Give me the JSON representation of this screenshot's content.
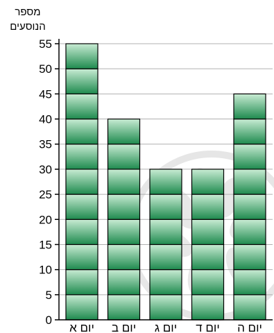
{
  "chart_data": {
    "type": "bar",
    "ylabel_lines": [
      "מספר",
      "הנוסעים"
    ],
    "categories": [
      "יום א",
      "יום ב",
      "יום ג",
      "יום ד",
      "יום ה"
    ],
    "values": [
      55,
      40,
      30,
      30,
      45
    ],
    "ylim": [
      0,
      55
    ],
    "yticks": [
      0,
      5,
      10,
      15,
      20,
      25,
      30,
      35,
      40,
      45,
      50,
      55
    ],
    "segment_size": 5,
    "grid": true,
    "colors": {
      "bar_top": "#c9ecd4",
      "bar_bottom": "#1e8a4e",
      "bar_edge": "#000000",
      "grid": "#b0b0b0",
      "watermark": "#e6e6e6"
    }
  }
}
